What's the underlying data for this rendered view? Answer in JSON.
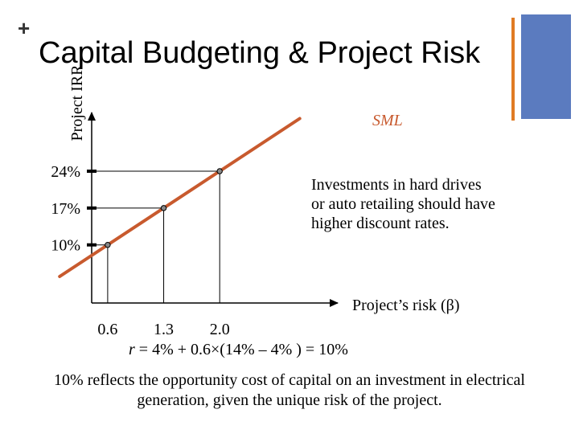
{
  "slide": {
    "plus_sign": "+",
    "title": "Capital Budgeting & Project Risk",
    "accent_orange": "#e07b24",
    "accent_blue": "#5b7bbf"
  },
  "chart_data": {
    "type": "line",
    "ylabel": "Project IRR",
    "xlabel": "Project’s risk (β)",
    "line_label": "SML",
    "line_color": "#c85a2e",
    "line": {
      "x": [
        0.0,
        3.0
      ],
      "y": [
        4,
        34
      ]
    },
    "points": [
      {
        "x": 0.6,
        "y": 10,
        "x_label": "0.6",
        "y_label": "10%"
      },
      {
        "x": 1.3,
        "y": 17,
        "x_label": "1.3",
        "y_label": "17%"
      },
      {
        "x": 2.0,
        "y": 24,
        "x_label": "2.0",
        "y_label": "24%"
      }
    ]
  },
  "annotation": "Investments in hard drives or auto retailing should have higher discount rates.",
  "formula": {
    "var": "r",
    "rest": " = 4% + 0.6×(14% – 4% ) = 10%"
  },
  "footer": "10% reflects the opportunity cost of capital on an investment in electrical generation, given the unique risk of the project."
}
